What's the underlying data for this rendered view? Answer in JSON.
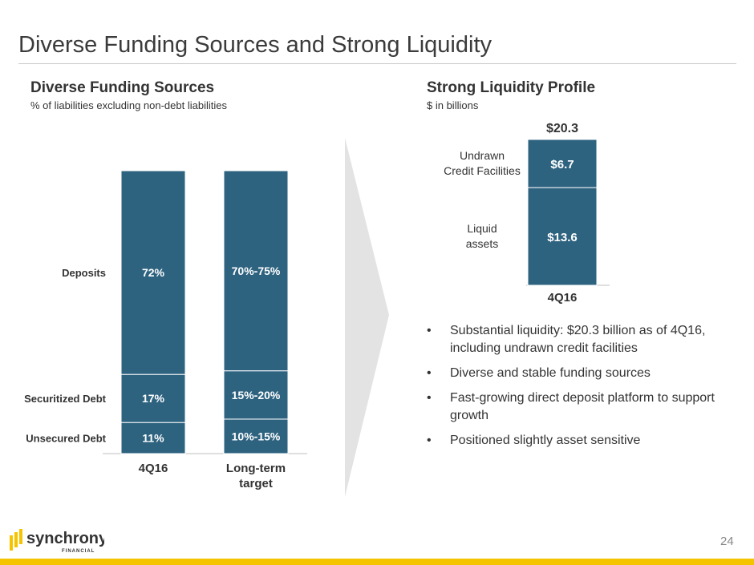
{
  "slide": {
    "title": "Diverse Funding Sources and Strong Liquidity",
    "page_number": "24",
    "brand_colors": {
      "bar": "#2e6380",
      "accent": "#f5c400",
      "divider_arrow": "#e3e3e3"
    }
  },
  "left": {
    "title": "Diverse Funding Sources",
    "subtitle": "% of liabilities excluding non-debt liabilities"
  },
  "right": {
    "title": "Strong Liquidity Profile",
    "subtitle": "$ in billions",
    "bullets": [
      "Substantial liquidity: $20.3 billion as of 4Q16, including undrawn credit facilities",
      "Diverse and stable funding sources",
      "Fast-growing direct deposit platform to support growth",
      "Positioned slightly asset sensitive"
    ]
  },
  "logo": {
    "name": "synchrony",
    "sub": "FINANCIAL"
  },
  "chart_data": [
    {
      "type": "bar",
      "stacked": true,
      "categories": [
        "4Q16",
        "Long-term target"
      ],
      "series": [
        {
          "name": "Unsecured Debt",
          "values": [
            11,
            12.5
          ],
          "labels": [
            "11%",
            "10%-15%"
          ]
        },
        {
          "name": "Securitized Debt",
          "values": [
            17,
            17.5
          ],
          "labels": [
            "17%",
            "15%-20%"
          ]
        },
        {
          "name": "Deposits",
          "values": [
            72,
            72.5
          ],
          "labels": [
            "72%",
            "70%-75%"
          ]
        }
      ],
      "ylim": [
        0,
        100
      ],
      "legend": "left"
    },
    {
      "type": "bar",
      "stacked": true,
      "categories": [
        "4Q16"
      ],
      "series": [
        {
          "name": "Liquid assets",
          "values": [
            13.6
          ],
          "labels": [
            "$13.6"
          ]
        },
        {
          "name": "Undrawn Credit Facilities",
          "values": [
            6.7
          ],
          "labels": [
            "$6.7"
          ]
        }
      ],
      "total_label": "$20.3",
      "legend": "left"
    }
  ]
}
